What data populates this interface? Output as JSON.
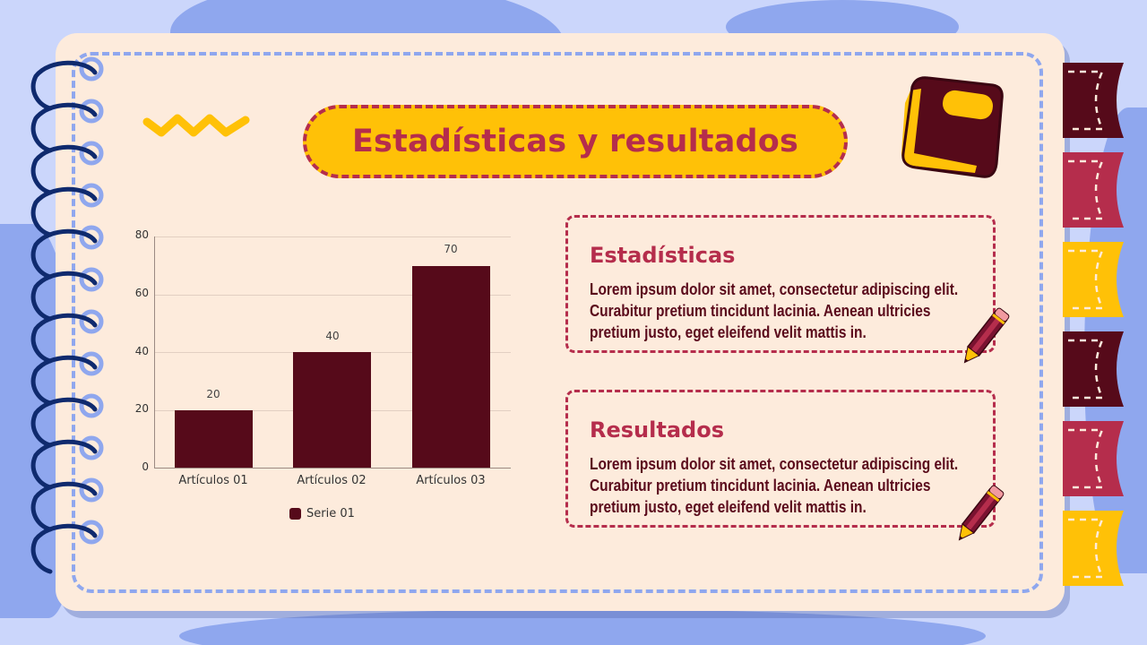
{
  "slide": {
    "title": "Estadísticas y resultados",
    "cards": [
      {
        "heading": "Estadísticas",
        "body": "Lorem ipsum dolor sit amet, consectetur adipiscing elit. Curabitur pretium tincidunt lacinia. Aenean ultricies pretium justo, eget eleifend velit mattis in."
      },
      {
        "heading": "Resultados",
        "body": "Lorem ipsum dolor sit amet, consectetur adipiscing elit. Curabitur pretium tincidunt lacinia. Aenean ultricies pretium justo, eget eleifend velit mattis in."
      }
    ],
    "icons": [
      "spiral-binding-icon",
      "zigzag-icon",
      "notebook-icon",
      "pencil-icon",
      "bookmark-tab-icon"
    ]
  },
  "colors": {
    "background": "#cbd6fb",
    "background_shapes": "#8fa7ee",
    "page": "#fdebdc",
    "accent_red": "#b52d4c",
    "accent_yellow": "#ffc107",
    "dark_maroon": "#560a1a",
    "spiral_navy": "#0f2a6e"
  },
  "chart_data": {
    "type": "bar",
    "title": "",
    "categories": [
      "Artículos 01",
      "Artículos 02",
      "Artículos 03"
    ],
    "series": [
      {
        "name": "Serie 01",
        "values": [
          20,
          40,
          70
        ],
        "color": "#560a1a"
      }
    ],
    "data_labels": [
      "20",
      "40",
      "70"
    ],
    "xlabel": "",
    "ylabel": "",
    "ylim": [
      0,
      80
    ],
    "yticks": [
      "0",
      "20",
      "40",
      "60",
      "80"
    ],
    "grid": true,
    "legend_position": "bottom"
  }
}
